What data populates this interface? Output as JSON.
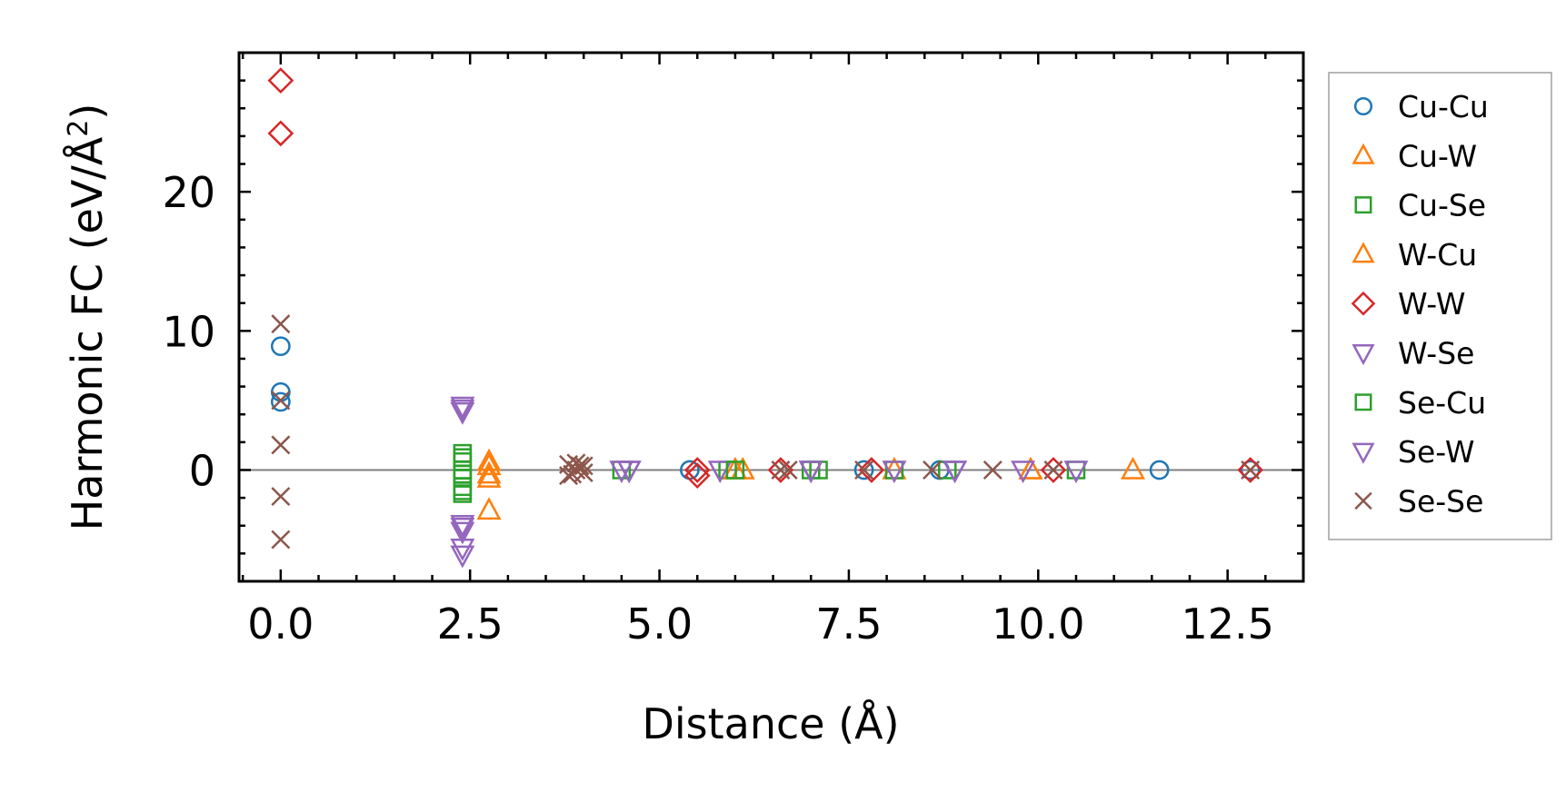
{
  "chart_data": {
    "type": "scatter",
    "xlabel": "Distance (Å)",
    "ylabel": "Harmonic FC (eV/Å",
    "ylabel_superscript": "2",
    "ylabel_suffix": ")",
    "xlim": [
      -0.55,
      13.5
    ],
    "ylim": [
      -8.0,
      30.0
    ],
    "xticks": [
      0.0,
      2.5,
      5.0,
      7.5,
      10.0,
      12.5
    ],
    "xtick_labels": [
      "0.0",
      "2.5",
      "5.0",
      "7.5",
      "10.0",
      "12.5"
    ],
    "yticks": [
      0,
      10,
      20
    ],
    "ytick_labels": [
      "0",
      "10",
      "20"
    ],
    "zero_line": true,
    "grid": false,
    "legend_placement": "outside-right",
    "series": [
      {
        "name": "Cu-Cu",
        "marker": "circle",
        "color": "#1f77b4",
        "points": [
          [
            0,
            8.9
          ],
          [
            0,
            5.6
          ],
          [
            0,
            4.9
          ],
          [
            5.4,
            0
          ],
          [
            7.7,
            0
          ],
          [
            8.7,
            0
          ],
          [
            11.6,
            0
          ],
          [
            12.8,
            0
          ]
        ]
      },
      {
        "name": "Cu-W",
        "marker": "triangle-up",
        "color": "#ff7f0e",
        "points": [
          [
            2.75,
            0.6
          ],
          [
            2.75,
            -0.6
          ],
          [
            2.75,
            -2.9
          ],
          [
            6.1,
            0
          ],
          [
            8.1,
            0
          ],
          [
            9.9,
            0
          ],
          [
            11.25,
            0
          ]
        ]
      },
      {
        "name": "Cu-Se",
        "marker": "square",
        "color": "#2ca02c",
        "points": [
          [
            2.4,
            1.2
          ],
          [
            2.4,
            0.6
          ],
          [
            2.4,
            0
          ],
          [
            2.4,
            -0.6
          ],
          [
            2.4,
            -1.2
          ],
          [
            2.4,
            -1.7
          ],
          [
            4.5,
            0
          ],
          [
            5.9,
            0
          ],
          [
            7.0,
            0
          ],
          [
            8.1,
            0
          ],
          [
            8.8,
            0
          ],
          [
            10.5,
            0
          ]
        ]
      },
      {
        "name": "W-Cu",
        "marker": "triangle-up",
        "color": "#ff7f0e",
        "points": [
          [
            2.75,
            0.3
          ],
          [
            2.75,
            -0.3
          ],
          [
            6.0,
            0
          ],
          [
            9.9,
            0
          ]
        ]
      },
      {
        "name": "W-W",
        "marker": "diamond",
        "color": "#d62728",
        "points": [
          [
            0,
            28.0
          ],
          [
            0,
            24.2
          ],
          [
            5.5,
            0
          ],
          [
            5.5,
            -0.4
          ],
          [
            6.6,
            0
          ],
          [
            7.8,
            0
          ],
          [
            10.2,
            0
          ],
          [
            12.8,
            0
          ]
        ]
      },
      {
        "name": "W-Se",
        "marker": "triangle-down",
        "color": "#9467bd",
        "points": [
          [
            2.4,
            4.6
          ],
          [
            2.4,
            4.2
          ],
          [
            2.4,
            -3.9
          ],
          [
            2.4,
            -4.4
          ],
          [
            2.4,
            -5.6
          ],
          [
            2.4,
            -6.1
          ],
          [
            4.5,
            0
          ],
          [
            4.6,
            0
          ],
          [
            5.8,
            0
          ],
          [
            7.0,
            0
          ],
          [
            8.1,
            0
          ],
          [
            8.9,
            0
          ],
          [
            9.8,
            0
          ],
          [
            10.5,
            0
          ]
        ]
      },
      {
        "name": "Se-Cu",
        "marker": "square",
        "color": "#2ca02c",
        "points": [
          [
            2.4,
            0.9
          ],
          [
            2.4,
            -0.3
          ],
          [
            2.4,
            -1.5
          ],
          [
            6.0,
            0
          ],
          [
            7.1,
            0
          ]
        ]
      },
      {
        "name": "Se-W",
        "marker": "triangle-down",
        "color": "#9467bd",
        "points": [
          [
            2.4,
            4.4
          ],
          [
            2.4,
            -4.1
          ],
          [
            4.6,
            0
          ],
          [
            7.0,
            0
          ],
          [
            8.9,
            0
          ]
        ]
      },
      {
        "name": "Se-Se",
        "marker": "x",
        "color": "#8c564b",
        "points": [
          [
            0,
            10.5
          ],
          [
            0,
            5.0
          ],
          [
            0,
            1.8
          ],
          [
            0,
            -1.9
          ],
          [
            0,
            -5.0
          ],
          [
            3.8,
            0.4
          ],
          [
            3.85,
            -0.3
          ],
          [
            3.9,
            0
          ],
          [
            3.95,
            0.3
          ],
          [
            4.0,
            -0.2
          ],
          [
            3.8,
            -0.4
          ],
          [
            3.9,
            0.5
          ],
          [
            4.0,
            0.3
          ],
          [
            6.7,
            0
          ],
          [
            6.6,
            0
          ],
          [
            7.7,
            0
          ],
          [
            8.6,
            0
          ],
          [
            9.4,
            0
          ],
          [
            10.2,
            0
          ],
          [
            12.8,
            0
          ]
        ]
      }
    ]
  }
}
